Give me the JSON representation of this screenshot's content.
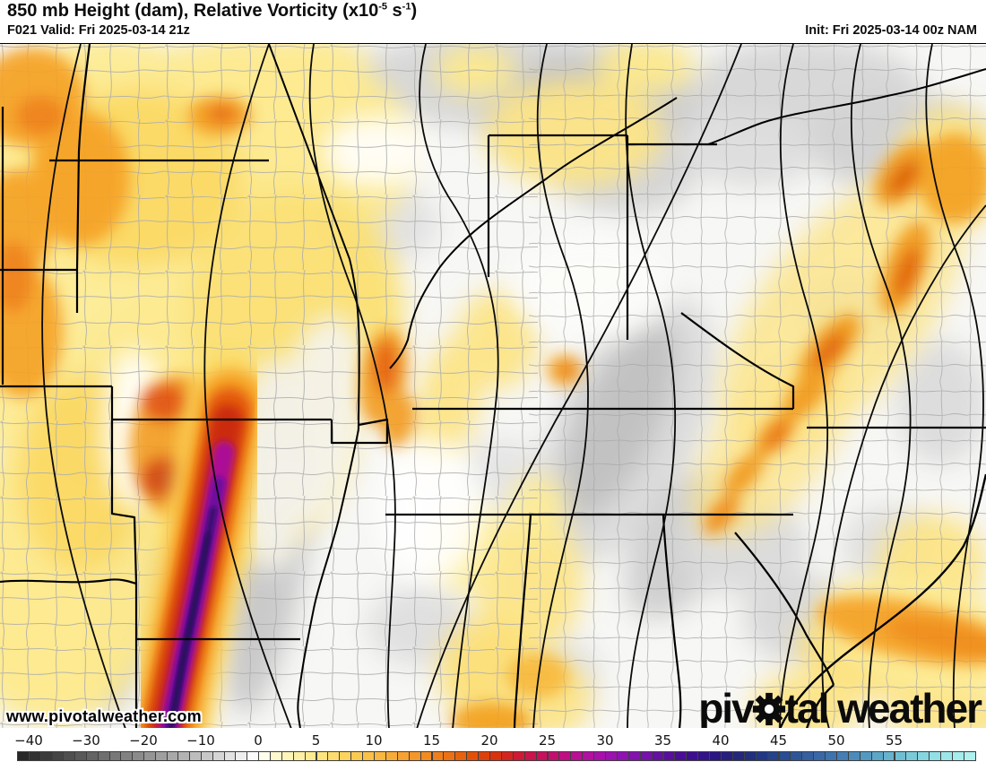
{
  "header": {
    "title_prefix": "850 mb Height (dam), Relative Vorticity (x10",
    "title_sup1": "-5",
    "title_mid": " s",
    "title_sup2": "-1",
    "title_suffix": ")",
    "valid": "F021 Valid: Fri 2025-03-14 21z",
    "init": "Init: Fri 2025-03-14 00z NAM"
  },
  "watermark": "www.pivotalweather.com",
  "logo": {
    "part1": "piv",
    "gear_icon": "gear",
    "part2": "tal",
    "part3": " weather"
  },
  "map": {
    "description": "850 mb height contours with relative vorticity shading over the central and southeastern United States",
    "colors": {
      "vorticity_yellow": "#fde98c",
      "vorticity_gold": "#fbd95e",
      "vorticity_orange": "#f5a226",
      "vorticity_deep_orange": "#e55d08",
      "vorticity_red": "#cb2b0c",
      "vorticity_magenta": "#ab0d96",
      "vorticity_purple": "#5b0b8e",
      "vorticity_indigo": "#241056",
      "negative_gray": "#c2c2c2",
      "contour_black": "#0a0a0a",
      "county_gray": "#adadad",
      "state_black": "#000000"
    }
  },
  "colorbar": {
    "ticks": [
      -40,
      -30,
      -20,
      -10,
      0,
      5,
      10,
      15,
      20,
      25,
      30,
      35,
      40,
      45,
      50,
      55
    ],
    "value_min": -42,
    "value_max": 62,
    "neg_cell_units": 2,
    "pos_cell_units": 1,
    "stops": [
      [
        -42,
        "#222222"
      ],
      [
        -34,
        "#4a4a4a"
      ],
      [
        -26,
        "#737373"
      ],
      [
        -18,
        "#9a9a9a"
      ],
      [
        -10,
        "#c2c2c2"
      ],
      [
        -4,
        "#e8e8e8"
      ],
      [
        -1,
        "#fbfbfb"
      ],
      [
        0,
        "#ffffff"
      ],
      [
        1,
        "#fffbd8"
      ],
      [
        3,
        "#fef3ae"
      ],
      [
        5,
        "#fde884"
      ],
      [
        8,
        "#fccf58"
      ],
      [
        11,
        "#f8b13c"
      ],
      [
        14,
        "#f39126"
      ],
      [
        17,
        "#ea6a10"
      ],
      [
        19,
        "#e04807"
      ],
      [
        21,
        "#d52a10"
      ],
      [
        23,
        "#cd1542"
      ],
      [
        25,
        "#c60f66"
      ],
      [
        27,
        "#bd0f8d"
      ],
      [
        29,
        "#ad10a6"
      ],
      [
        31,
        "#9612b3"
      ],
      [
        33,
        "#7c11ac"
      ],
      [
        35,
        "#5f0fa0"
      ],
      [
        37,
        "#430e92"
      ],
      [
        39,
        "#2c1384"
      ],
      [
        41,
        "#24237a"
      ],
      [
        43,
        "#203380"
      ],
      [
        45,
        "#27478e"
      ],
      [
        47,
        "#315a9c"
      ],
      [
        49,
        "#3b6daa"
      ],
      [
        51,
        "#4784b7"
      ],
      [
        53,
        "#58a0c5"
      ],
      [
        55,
        "#69b9d1"
      ],
      [
        57,
        "#80d1dd"
      ],
      [
        59,
        "#98e5e7"
      ],
      [
        62,
        "#b2f3f0"
      ]
    ]
  }
}
